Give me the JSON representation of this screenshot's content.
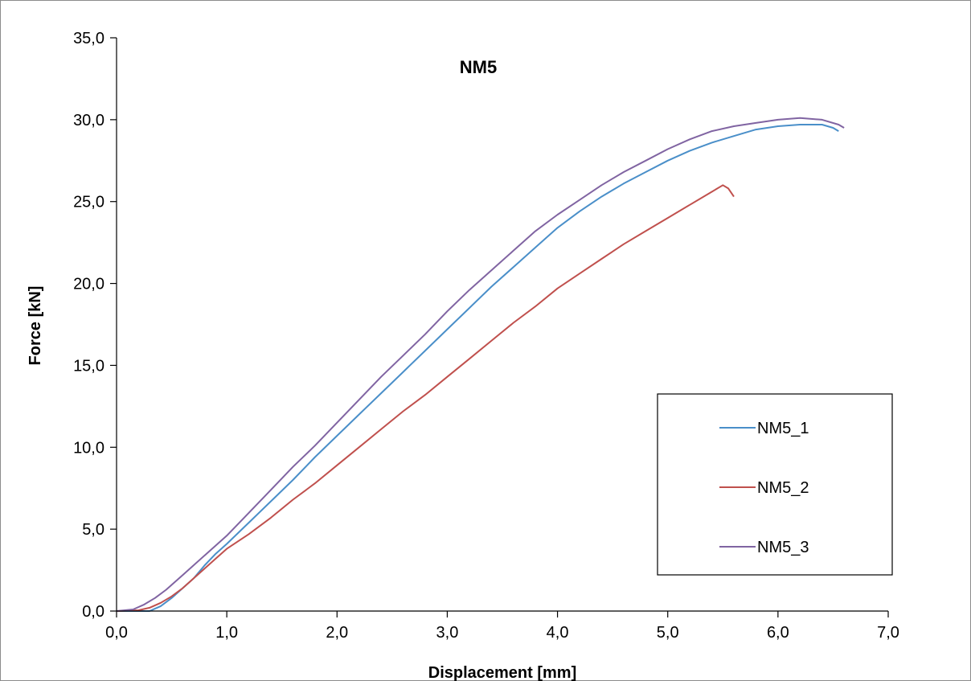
{
  "chart_data": {
    "type": "line",
    "title": "NM5",
    "xlabel": "Displacement [mm]",
    "ylabel": "Force [kN]",
    "xlim": [
      0,
      7
    ],
    "ylim": [
      0,
      35
    ],
    "xticks": [
      "0,0",
      "1,0",
      "2,0",
      "3,0",
      "4,0",
      "5,0",
      "6,0",
      "7,0"
    ],
    "yticks": [
      "0,0",
      "5,0",
      "10,0",
      "15,0",
      "20,0",
      "25,0",
      "30,0",
      "35,0"
    ],
    "grid": false,
    "legend_position": "lower-right",
    "series": [
      {
        "name": "NM5_1",
        "color": "#4a8fc9",
        "points": [
          [
            0,
            0
          ],
          [
            0.3,
            0
          ],
          [
            0.4,
            0.3
          ],
          [
            0.5,
            0.8
          ],
          [
            0.6,
            1.4
          ],
          [
            0.7,
            2.0
          ],
          [
            0.8,
            2.8
          ],
          [
            0.9,
            3.5
          ],
          [
            1.0,
            4.1
          ],
          [
            1.2,
            5.4
          ],
          [
            1.4,
            6.7
          ],
          [
            1.6,
            8.0
          ],
          [
            1.8,
            9.4
          ],
          [
            2.0,
            10.7
          ],
          [
            2.2,
            12.0
          ],
          [
            2.4,
            13.3
          ],
          [
            2.6,
            14.6
          ],
          [
            2.8,
            15.9
          ],
          [
            3.0,
            17.2
          ],
          [
            3.2,
            18.5
          ],
          [
            3.4,
            19.8
          ],
          [
            3.6,
            21.0
          ],
          [
            3.8,
            22.2
          ],
          [
            4.0,
            23.4
          ],
          [
            4.2,
            24.4
          ],
          [
            4.4,
            25.3
          ],
          [
            4.6,
            26.1
          ],
          [
            4.8,
            26.8
          ],
          [
            5.0,
            27.5
          ],
          [
            5.2,
            28.1
          ],
          [
            5.4,
            28.6
          ],
          [
            5.6,
            29.0
          ],
          [
            5.8,
            29.4
          ],
          [
            6.0,
            29.6
          ],
          [
            6.2,
            29.7
          ],
          [
            6.4,
            29.7
          ],
          [
            6.5,
            29.5
          ],
          [
            6.55,
            29.3
          ]
        ]
      },
      {
        "name": "NM5_2",
        "color": "#c0504d",
        "points": [
          [
            0,
            0
          ],
          [
            0.2,
            0.05
          ],
          [
            0.3,
            0.2
          ],
          [
            0.4,
            0.5
          ],
          [
            0.5,
            0.9
          ],
          [
            0.6,
            1.4
          ],
          [
            0.7,
            2.0
          ],
          [
            0.8,
            2.6
          ],
          [
            0.9,
            3.2
          ],
          [
            1.0,
            3.8
          ],
          [
            1.2,
            4.7
          ],
          [
            1.4,
            5.7
          ],
          [
            1.6,
            6.8
          ],
          [
            1.8,
            7.8
          ],
          [
            2.0,
            8.9
          ],
          [
            2.2,
            10.0
          ],
          [
            2.4,
            11.1
          ],
          [
            2.6,
            12.2
          ],
          [
            2.8,
            13.2
          ],
          [
            3.0,
            14.3
          ],
          [
            3.2,
            15.4
          ],
          [
            3.4,
            16.5
          ],
          [
            3.6,
            17.6
          ],
          [
            3.8,
            18.6
          ],
          [
            4.0,
            19.7
          ],
          [
            4.2,
            20.6
          ],
          [
            4.4,
            21.5
          ],
          [
            4.6,
            22.4
          ],
          [
            4.8,
            23.2
          ],
          [
            5.0,
            24.0
          ],
          [
            5.2,
            24.8
          ],
          [
            5.4,
            25.6
          ],
          [
            5.5,
            26.0
          ],
          [
            5.55,
            25.8
          ],
          [
            5.6,
            25.3
          ]
        ]
      },
      {
        "name": "NM5_3",
        "color": "#8064a2",
        "points": [
          [
            0,
            0
          ],
          [
            0.15,
            0.1
          ],
          [
            0.25,
            0.4
          ],
          [
            0.35,
            0.8
          ],
          [
            0.45,
            1.3
          ],
          [
            0.6,
            2.2
          ],
          [
            0.8,
            3.4
          ],
          [
            1.0,
            4.6
          ],
          [
            1.2,
            6.0
          ],
          [
            1.4,
            7.4
          ],
          [
            1.6,
            8.8
          ],
          [
            1.8,
            10.1
          ],
          [
            2.0,
            11.5
          ],
          [
            2.2,
            12.9
          ],
          [
            2.4,
            14.3
          ],
          [
            2.6,
            15.6
          ],
          [
            2.8,
            16.9
          ],
          [
            3.0,
            18.3
          ],
          [
            3.2,
            19.6
          ],
          [
            3.4,
            20.8
          ],
          [
            3.6,
            22.0
          ],
          [
            3.8,
            23.2
          ],
          [
            4.0,
            24.2
          ],
          [
            4.2,
            25.1
          ],
          [
            4.4,
            26.0
          ],
          [
            4.6,
            26.8
          ],
          [
            4.8,
            27.5
          ],
          [
            5.0,
            28.2
          ],
          [
            5.2,
            28.8
          ],
          [
            5.4,
            29.3
          ],
          [
            5.6,
            29.6
          ],
          [
            5.8,
            29.8
          ],
          [
            6.0,
            30.0
          ],
          [
            6.2,
            30.1
          ],
          [
            6.4,
            30.0
          ],
          [
            6.55,
            29.7
          ],
          [
            6.6,
            29.5
          ]
        ]
      }
    ]
  }
}
